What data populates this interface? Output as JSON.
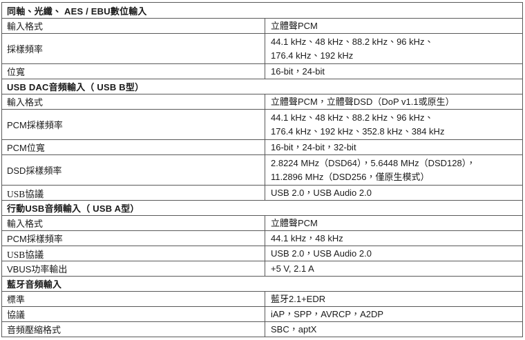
{
  "document": {
    "language": "zh-TW",
    "description": "audio input specifications table"
  },
  "colors": {
    "background": "#ffffff",
    "border": "#585858",
    "text": "#1a1a1a"
  },
  "table": {
    "sections": [
      {
        "header": "同軸、光纖、 AES / EBU數位輸入",
        "rows": [
          {
            "label": "輸入格式",
            "value_lines": [
              "立體聲PCM"
            ]
          },
          {
            "label": "採樣頻率",
            "value_lines": [
              "44.1 kHz、48 kHz、88.2 kHz、96 kHz、",
              "176.4 kHz、192 kHz"
            ]
          },
          {
            "label": "位寬",
            "value_lines": [
              "16-bit，24-bit"
            ]
          }
        ]
      },
      {
        "header": "USB DAC音頻輸入（ USB B型）",
        "rows": [
          {
            "label": "輸入格式",
            "value_lines": [
              "立體聲PCM，立體聲DSD（DoP v1.1或原生）"
            ]
          },
          {
            "label": "PCM採樣頻率",
            "value_lines": [
              "44.1 kHz、48 kHz、88.2 kHz、96 kHz、",
              "176.4 kHz、192 kHz、352.8 kHz、384 kHz"
            ]
          },
          {
            "label": "PCM位寬",
            "value_lines": [
              "16-bit，24-bit，32-bit"
            ]
          },
          {
            "label": "DSD採樣頻率",
            "value_lines": [
              "2.8224 MHz（DSD64），5.6448 MHz（DSD128），",
              "11.2896 MHz（DSD256，僅原生模式）"
            ]
          },
          {
            "label": "USB協議",
            "serif": true,
            "value_lines": [
              "USB 2.0，USB Audio 2.0"
            ]
          }
        ]
      },
      {
        "header": "行動USB音頻輸入（ USB A型）",
        "rows": [
          {
            "label": "輸入格式",
            "value_lines": [
              "立體聲PCM"
            ]
          },
          {
            "label": "PCM採樣頻率",
            "value_lines": [
              "44.1 kHz，48 kHz"
            ]
          },
          {
            "label": "USB協議",
            "serif": true,
            "value_lines": [
              "USB 2.0，USB Audio 2.0"
            ]
          },
          {
            "label": "VBUS功率輸出",
            "value_lines": [
              "+5 V, 2.1 A"
            ]
          }
        ]
      },
      {
        "header": "藍牙音頻輸入",
        "rows": [
          {
            "label": "標準",
            "value_lines": [
              "藍牙2.1+EDR"
            ]
          },
          {
            "label": "協議",
            "value_lines": [
              "iAP，SPP，AVRCP，A2DP"
            ]
          },
          {
            "label": "音頻壓縮格式",
            "value_lines": [
              "SBC，aptX"
            ]
          }
        ]
      }
    ]
  }
}
